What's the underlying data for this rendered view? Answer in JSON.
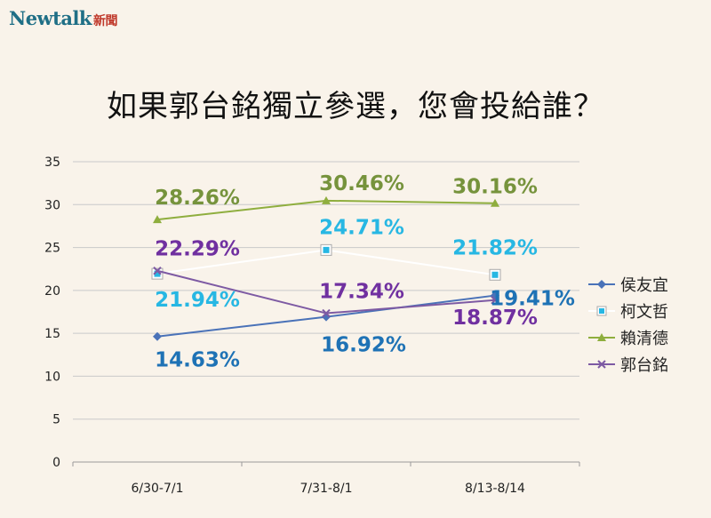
{
  "brand": {
    "name": "Newtalk",
    "suffix": "新聞"
  },
  "colors": {
    "bg": "#f9f3ea",
    "grid": "#c9c9c9",
    "hou": "#4a72b8",
    "ko": "#ffffff",
    "lai": "#8fae3e",
    "kuo": "#7d5aa3",
    "label_hou": "#1e72b5",
    "label_ko": "#27b7e3",
    "label_lai": "#76933c",
    "label_kuo": "#7030a0"
  },
  "chart_data": {
    "type": "line",
    "title": "如果郭台銘獨立參選，您會投給誰？",
    "categories": [
      "6/30-7/1",
      "7/31-8/1",
      "8/13-8/14"
    ],
    "ylim": [
      0,
      35
    ],
    "yticks": [
      "0",
      "5",
      "10",
      "15",
      "20",
      "25",
      "30",
      "35"
    ],
    "grid": true,
    "legend": "right",
    "series": [
      {
        "name": "侯友宜",
        "values": [
          14.63,
          16.92,
          19.41
        ],
        "labels": [
          "14.63%",
          "16.92%",
          "19.41%"
        ],
        "marker": "diamond"
      },
      {
        "name": "柯文哲",
        "values": [
          21.94,
          24.71,
          21.82
        ],
        "labels": [
          "21.94%",
          "24.71%",
          "21.82%"
        ],
        "marker": "square"
      },
      {
        "name": "賴清德",
        "values": [
          28.26,
          30.46,
          30.16
        ],
        "labels": [
          "28.26%",
          "30.46%",
          "30.16%"
        ],
        "marker": "triangle"
      },
      {
        "name": "郭台銘",
        "values": [
          22.29,
          17.34,
          18.87
        ],
        "labels": [
          "22.29%",
          "17.34%",
          "18.87%"
        ],
        "marker": "x"
      }
    ]
  }
}
